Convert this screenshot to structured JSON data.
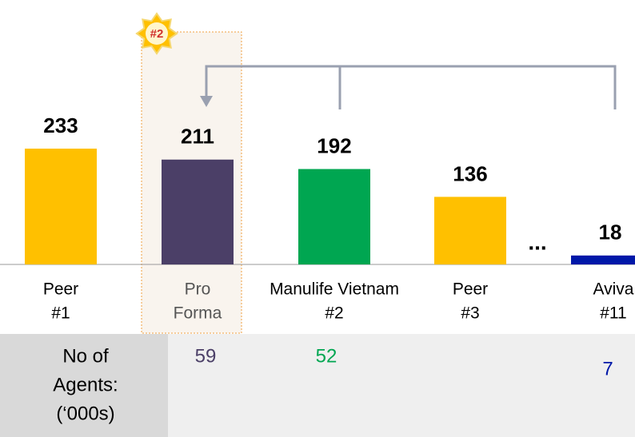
{
  "chart_data": {
    "type": "bar",
    "categories": [
      [
        "Peer",
        "#1"
      ],
      [
        "Pro",
        "Forma"
      ],
      [
        "Manulife Vietnam",
        "#2"
      ],
      [
        "Peer",
        "#3"
      ],
      [
        "Aviva",
        "#11"
      ]
    ],
    "values": [
      233,
      211,
      192,
      136,
      18
    ],
    "colors": [
      "#FFC000",
      "#4B3F67",
      "#00A651",
      "#FFC000",
      "#0018A8"
    ],
    "category_colors": [
      "#000000",
      "#555555",
      "#000000",
      "#000000",
      "#000000"
    ],
    "badge": "#2",
    "ellipsis": "...",
    "agents": {
      "label": [
        "No of",
        "Agents:",
        "(‘000s)"
      ],
      "values": [
        null,
        59,
        52,
        null,
        7
      ]
    }
  }
}
